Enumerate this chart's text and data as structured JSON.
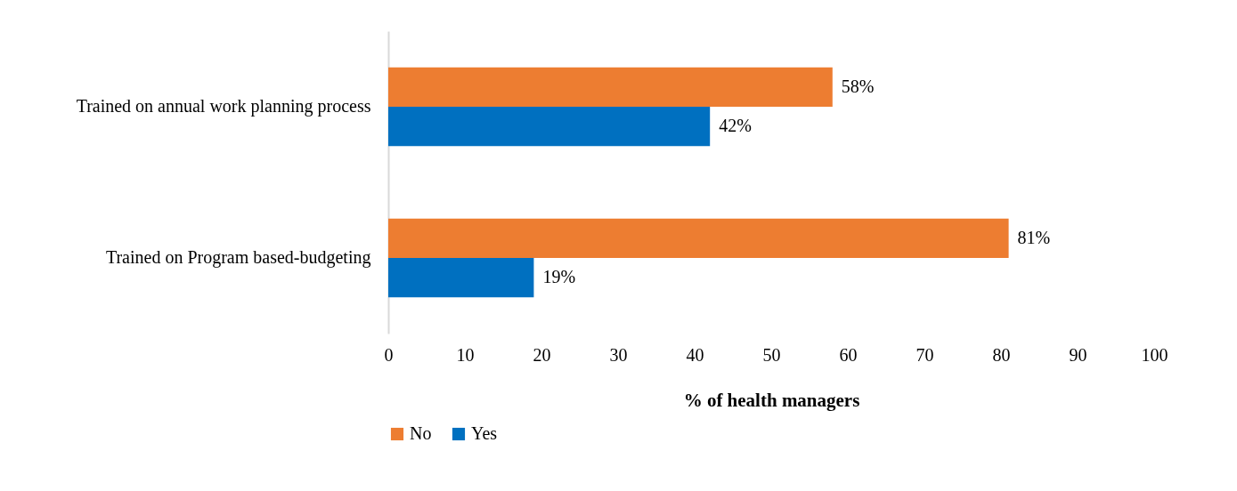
{
  "chart_data": {
    "type": "bar",
    "orientation": "horizontal",
    "categories": [
      "Trained on annual work planning process",
      "Trained on Program based-budgeting"
    ],
    "series": [
      {
        "name": "No",
        "color": "#ed7d31",
        "values": [
          58,
          81
        ],
        "value_labels": [
          "58%",
          "81%"
        ]
      },
      {
        "name": "Yes",
        "color": "#0070c0",
        "values": [
          42,
          19
        ],
        "value_labels": [
          "42%",
          "19%"
        ]
      }
    ],
    "xlabel": "% of health managers",
    "xlim": [
      0,
      100
    ],
    "xticks": [
      0,
      10,
      20,
      30,
      40,
      50,
      60,
      70,
      80,
      90,
      100
    ],
    "grid": false,
    "legend": "bottom"
  }
}
